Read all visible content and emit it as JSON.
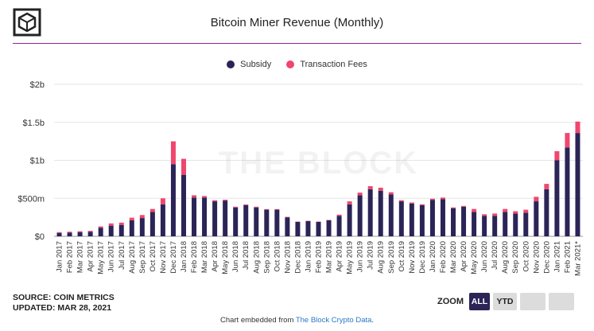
{
  "header": {
    "title": "Bitcoin Miner Revenue (Monthly)"
  },
  "legend": [
    {
      "name": "Subsidy",
      "color": "#2a2457"
    },
    {
      "name": "Transaction Fees",
      "color": "#f0466e"
    }
  ],
  "watermark": "THE BLOCK",
  "source": {
    "line1": "SOURCE: COIN METRICS",
    "line2": "UPDATED: MAR 28, 2021"
  },
  "zoom": {
    "label": "ZOOM",
    "buttons": [
      "ALL",
      "YTD",
      "",
      ""
    ],
    "active": "ALL"
  },
  "footer": {
    "text": "Chart embedded from ",
    "link": "The Block Crypto Data",
    "suffix": "."
  },
  "chart_data": {
    "type": "bar",
    "stacked": true,
    "title": "Bitcoin Miner Revenue (Monthly)",
    "ylim": [
      0,
      2000
    ],
    "yunit": "millions USD",
    "yticks": [
      {
        "value": 0,
        "label": "$0"
      },
      {
        "value": 500,
        "label": "$500m"
      },
      {
        "value": 1000,
        "label": "$1b"
      },
      {
        "value": 1500,
        "label": "$1.5b"
      },
      {
        "value": 2000,
        "label": "$2b"
      }
    ],
    "categories": [
      "Jan 2017",
      "Feb 2017",
      "Mar 2017",
      "Apr 2017",
      "May 2017",
      "Jun 2017",
      "Jul 2017",
      "Aug 2017",
      "Sep 2017",
      "Oct 2017",
      "Nov 2017",
      "Dec 2017",
      "Jan 2018",
      "Feb 2018",
      "Mar 2018",
      "Apr 2018",
      "May 2018",
      "Jun 2018",
      "Jul 2018",
      "Aug 2018",
      "Sep 2018",
      "Oct 2018",
      "Nov 2018",
      "Dec 2018",
      "Jan 2019",
      "Feb 2019",
      "Mar 2019",
      "Apr 2019",
      "May 2019",
      "Jun 2019",
      "Jul 2019",
      "Aug 2019",
      "Sep 2019",
      "Oct 2019",
      "Nov 2019",
      "Dec 2019",
      "Jan 2020",
      "Feb 2020",
      "Mar 2020",
      "Apr 2020",
      "May 2020",
      "Jun 2020",
      "Jul 2020",
      "Aug 2020",
      "Sep 2020",
      "Oct 2020",
      "Nov 2020",
      "Dec 2020",
      "Jan 2021",
      "Feb 2021",
      "Mar 2021*"
    ],
    "series": [
      {
        "name": "Subsidy",
        "color": "#2a2457",
        "values": [
          45,
          50,
          55,
          60,
          110,
          140,
          150,
          210,
          240,
          320,
          420,
          950,
          810,
          510,
          510,
          460,
          470,
          380,
          410,
          380,
          350,
          350,
          250,
          190,
          200,
          190,
          210,
          270,
          420,
          540,
          620,
          600,
          550,
          460,
          430,
          410,
          480,
          490,
          370,
          390,
          320,
          270,
          270,
          320,
          300,
          310,
          460,
          620,
          1000,
          1170,
          1360
        ]
      },
      {
        "name": "Transaction Fees",
        "color": "#f0466e",
        "values": [
          10,
          10,
          12,
          12,
          20,
          30,
          30,
          35,
          40,
          40,
          80,
          300,
          210,
          30,
          20,
          15,
          12,
          10,
          10,
          10,
          8,
          8,
          6,
          5,
          5,
          5,
          6,
          15,
          40,
          35,
          40,
          40,
          30,
          15,
          15,
          12,
          15,
          20,
          10,
          10,
          40,
          20,
          30,
          40,
          30,
          40,
          60,
          70,
          120,
          190,
          150
        ]
      }
    ]
  }
}
